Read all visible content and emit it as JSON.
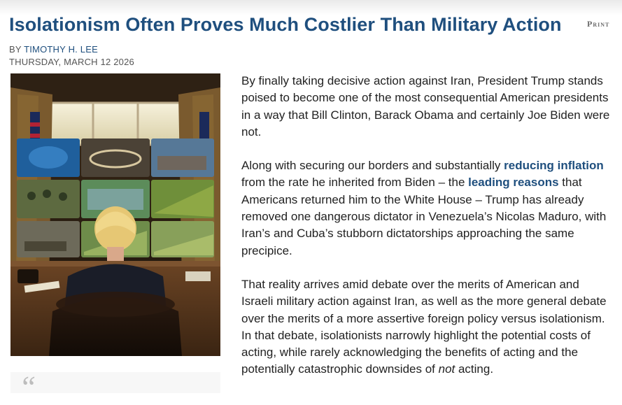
{
  "article": {
    "headline": "Isolationism Often Proves Much Costlier Than Military Action",
    "print_label": "Print",
    "byline_prefix": "BY ",
    "author": "TIMOTHY H. LEE",
    "date": "THURSDAY, MARCH 12 2026",
    "pull_quote_mark": "“",
    "p1": "By finally taking decisive action against Iran, President Trump stands poised to become one of the most consequential American presidents in a way that Bill Clinton, Barack Obama and certainly Joe Biden were not.",
    "p2": {
      "t1": "Along with securing our borders and substantially ",
      "link1": "reducing inflation",
      "t2": " from the rate he inherited from Biden – the ",
      "link2": "leading reasons",
      "t3": " that Americans returned him to the White House – Trump has already removed one dangerous dictator in Venezuela’s Nicolas Maduro, with Iran’s and Cuba’s stubborn dictatorships approaching the same precipice."
    },
    "p3": {
      "t1": "That reality arrives amid debate over the merits of American and Israeli military action against Iran, as well as the more general debate over the merits of a more assertive foreign policy versus isolationism.  In that debate, isolationists narrowly highlight the potential costs of acting, while rarely acknowledging the benefits of acting and the potentially catastrophic downsides of ",
      "em": "not",
      "t2": " acting."
    }
  },
  "colors": {
    "headline": "#1f4f7e",
    "link": "#1f4f7e",
    "body_text": "#222222",
    "meta_text": "#555555"
  }
}
